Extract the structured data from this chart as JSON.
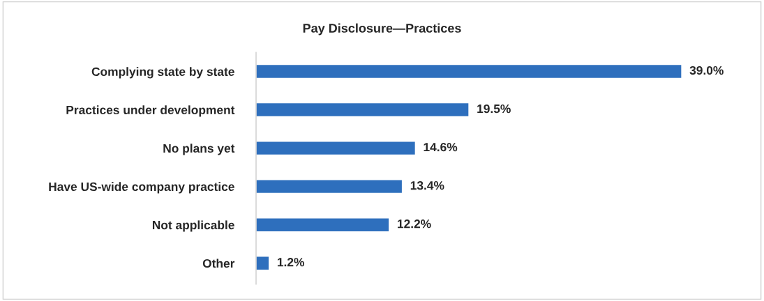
{
  "chart_data": {
    "type": "bar",
    "orientation": "horizontal",
    "title": "Pay Disclosure—Practices",
    "categories": [
      "Complying state by state",
      "Practices under development",
      "No plans yet",
      "Have US-wide company practice",
      "Not applicable",
      "Other"
    ],
    "values": [
      39.0,
      19.5,
      14.6,
      13.4,
      12.2,
      1.2
    ],
    "value_labels": [
      "39.0%",
      "19.5%",
      "14.6%",
      "13.4%",
      "12.2%",
      "1.2%"
    ],
    "color": "#2e6fbd",
    "grid": false,
    "legend": false
  }
}
